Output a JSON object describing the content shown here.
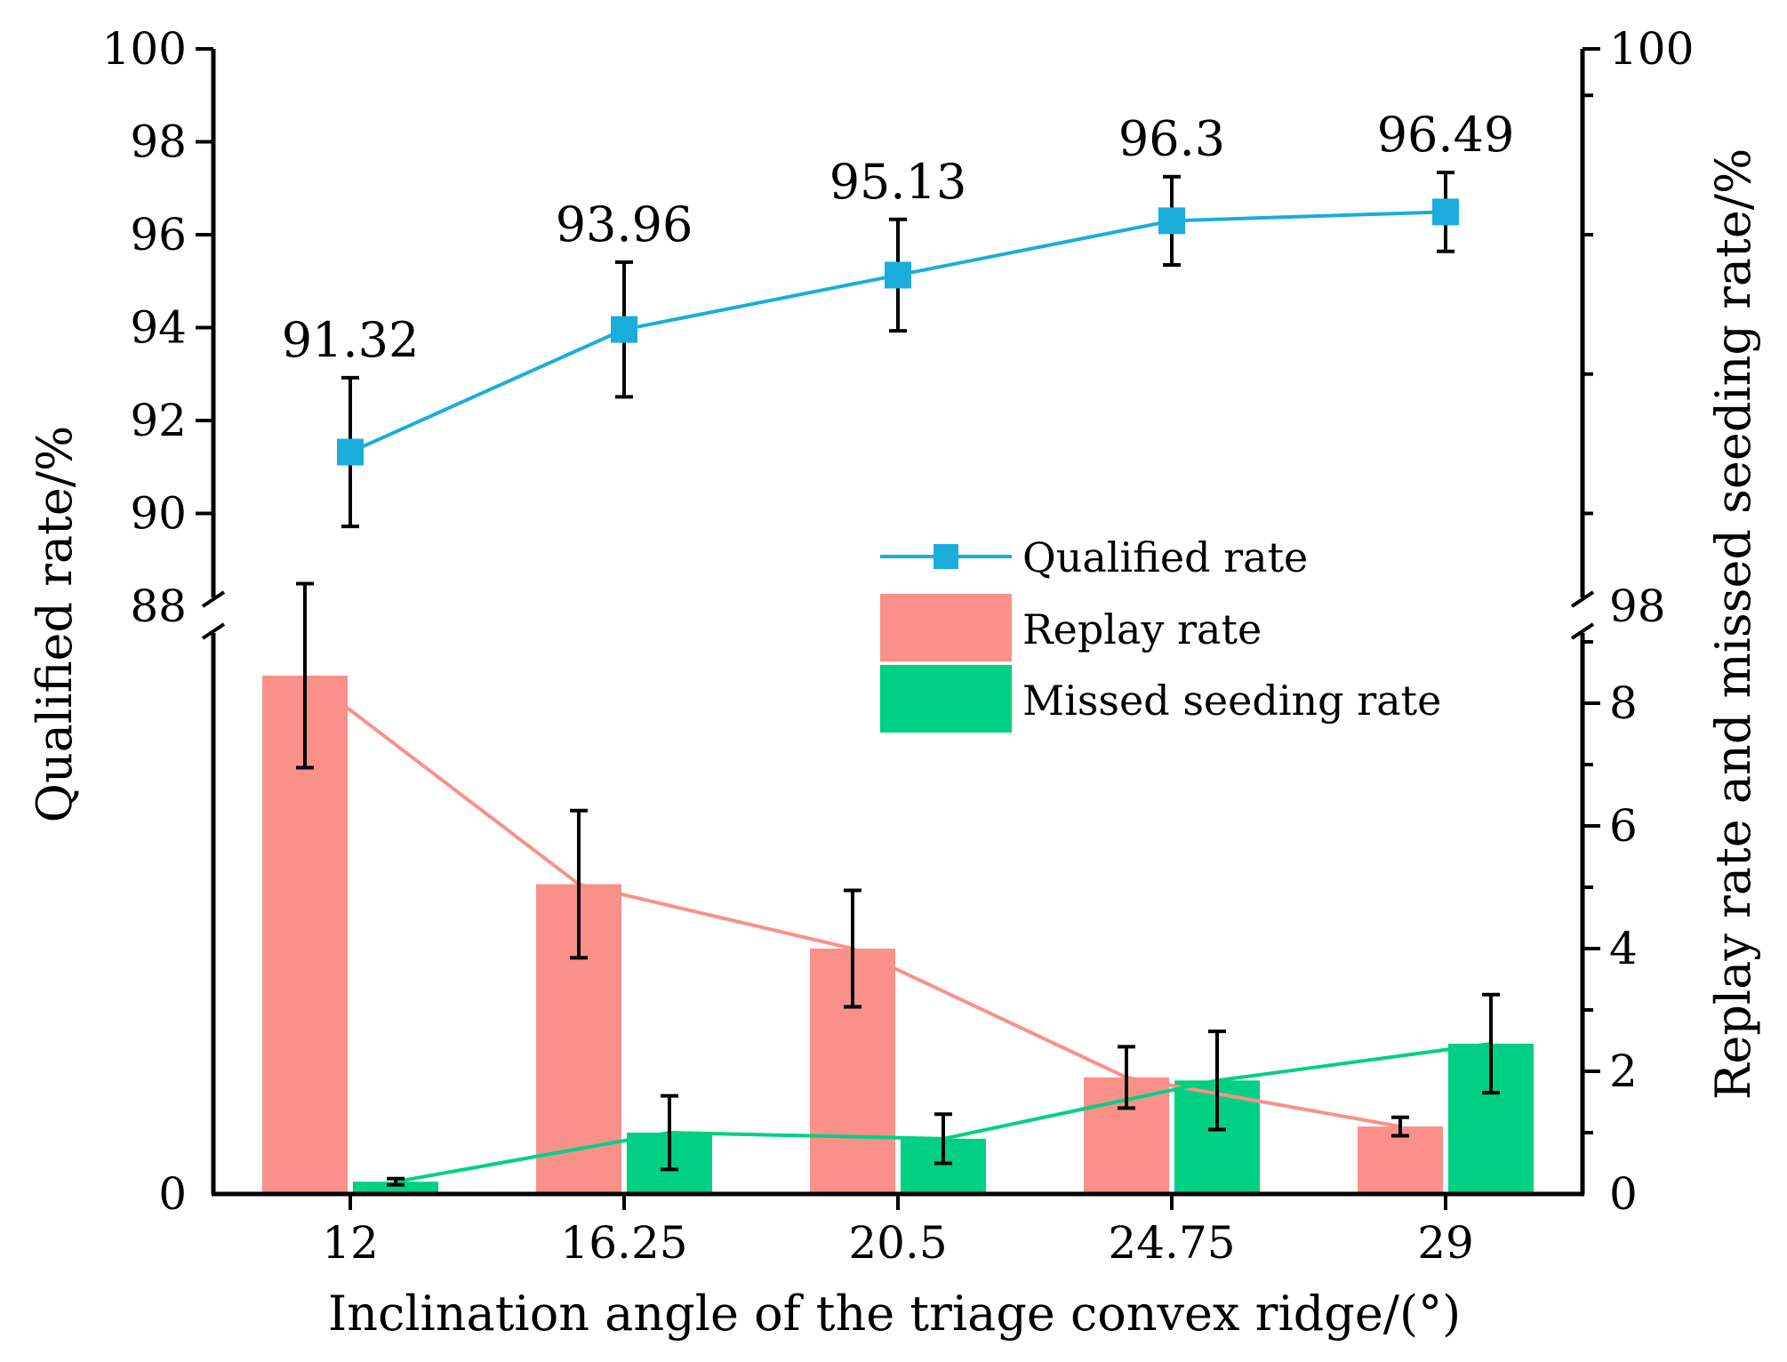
{
  "chart_data": {
    "type": "bar+line",
    "xlabel": "Inclination angle of the triage convex ridge/(°)",
    "ylabel_left": "Qualified rate/%",
    "ylabel_right": "Replay rate and missed seeding rate/%",
    "categories": [
      "12",
      "16.25",
      "20.5",
      "24.75",
      "29"
    ],
    "upper_panel": {
      "ylim": [
        88,
        100
      ],
      "left_ticks": [
        "88",
        "90",
        "92",
        "94",
        "96",
        "98",
        "100"
      ],
      "right_ticks": [
        "98",
        "100"
      ],
      "series": [
        {
          "name": "Qualified rate",
          "type": "line",
          "color": "#1AADDB",
          "values": [
            91.32,
            93.96,
            95.13,
            96.3,
            96.49
          ],
          "errors": [
            1.6,
            1.45,
            1.2,
            0.95,
            0.85
          ],
          "labels": [
            "91.32",
            "93.96",
            "95.13",
            "96.3",
            "96.49"
          ]
        }
      ]
    },
    "lower_panel": {
      "ylim": [
        0,
        9
      ],
      "left_ticks": [
        "0"
      ],
      "right_ticks": [
        "0",
        "2",
        "4",
        "6",
        "8"
      ],
      "series": [
        {
          "name": "Replay rate",
          "type": "bar",
          "color": "#F9908A",
          "values": [
            8.45,
            5.05,
            4.0,
            1.9,
            1.1
          ],
          "errors": [
            1.5,
            1.2,
            0.95,
            0.5,
            0.15
          ]
        },
        {
          "name": "Missed seeding rate",
          "type": "bar",
          "color": "#00D083",
          "values": [
            0.2,
            1.0,
            0.9,
            1.85,
            2.45
          ],
          "errors": [
            0.05,
            0.6,
            0.4,
            0.8,
            0.8
          ]
        }
      ]
    },
    "legend": {
      "position": "center-right",
      "items": [
        "Qualified rate",
        "Replay rate",
        "Missed seeding rate"
      ]
    }
  }
}
